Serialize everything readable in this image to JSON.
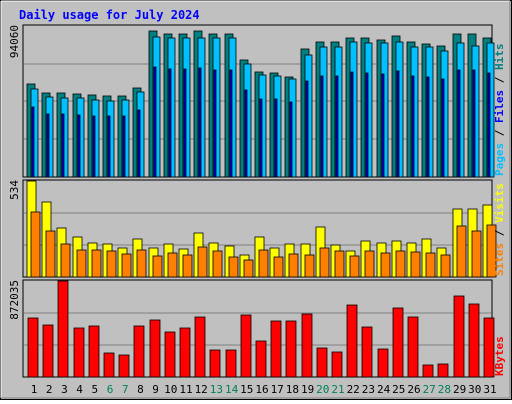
{
  "chart_data": {
    "type": "bar",
    "title": "Daily usage for July 2024",
    "categories": [
      "1",
      "2",
      "3",
      "4",
      "5",
      "6",
      "7",
      "8",
      "9",
      "10",
      "11",
      "12",
      "13",
      "14",
      "15",
      "16",
      "17",
      "18",
      "19",
      "20",
      "21",
      "22",
      "23",
      "24",
      "25",
      "26",
      "27",
      "28",
      "29",
      "30",
      "31"
    ],
    "weekend_days": [
      "6",
      "7",
      "13",
      "14",
      "20",
      "21",
      "27",
      "28"
    ],
    "panels": [
      {
        "name": "top",
        "ymax_label": "94060",
        "ymax": 94060,
        "legend": [
          "Pages",
          "Files",
          "Hits"
        ],
        "legend_colors": [
          "#00c0ff",
          "#0000ff",
          "#008080"
        ],
        "series": [
          {
            "name": "Hits",
            "color": "#008080",
            "values": [
              57950,
              52340,
              52180,
              51480,
              50820,
              50290,
              50600,
              55480,
              91100,
              89300,
              89300,
              90700,
              89100,
              89100,
              72700,
              65100,
              64800,
              62500,
              79900,
              84200,
              84000,
              86800,
              86500,
              85400,
              87800,
              83900,
              82700,
              81600,
              89000,
              89100,
              86600
            ]
          },
          {
            "name": "Files",
            "color": "#0000ff",
            "values": [
              43900,
              39200,
              39200,
              38600,
              38100,
              37700,
              37900,
              41600,
              68300,
              67000,
              67000,
              68000,
              66800,
              66800,
              54500,
              48800,
              48600,
              46900,
              59900,
              63200,
              63000,
              65100,
              64900,
              64000,
              65900,
              62900,
              62000,
              61200,
              66700,
              66800,
              65000
            ]
          },
          {
            "name": "Pages",
            "color": "#00c0ff",
            "values": [
              54700,
              49780,
              49020,
              49020,
              48240,
              47470,
              47890,
              52950,
              87290,
              86550,
              86550,
              86550,
              86550,
              86550,
              70140,
              63680,
              62800,
              60880,
              76280,
              80850,
              80850,
              84380,
              83440,
              83440,
              84380,
              80850,
              80850,
              78460,
              83440,
              81880,
              83440
            ]
          }
        ]
      },
      {
        "name": "middle",
        "ymax_label": "534",
        "ymax": 534,
        "legend": [
          "Sites",
          "Visits"
        ],
        "legend_colors": [
          "#ff8000",
          "#ffff00"
        ],
        "series": [
          {
            "name": "Visits",
            "color": "#ffff00",
            "values": [
              534,
              419,
              270,
              220,
              191,
              184,
              159,
              209,
              162,
              184,
              156,
              242,
              191,
              170,
              123,
              221,
              163,
              184,
              184,
              279,
              177,
              145,
              198,
              191,
              198,
              191,
              212,
              159,
              378,
              377,
              398
            ]
          },
          {
            "name": "Sites",
            "color": "#ff8000",
            "values": [
              363,
              255,
              184,
              152,
              150,
              142,
              128,
              152,
              117,
              132,
              120,
              166,
              142,
              114,
              96,
              150,
              114,
              130,
              120,
              164,
              142,
              117,
              142,
              132,
              142,
              138,
              135,
              120,
              282,
              255,
              287
            ]
          }
        ]
      },
      {
        "name": "bottom",
        "ymax_label": "872035",
        "ymax": 872035,
        "legend": [
          "KBytes"
        ],
        "legend_colors": [
          "#ff0000"
        ],
        "series": [
          {
            "name": "KBytes",
            "color": "#ff0000",
            "values": [
              540000,
              472000,
              872035,
              445000,
              462000,
              217000,
              199000,
              459000,
              514000,
              406000,
              448000,
              549000,
              246000,
              242000,
              559000,
              323000,
              512000,
              511000,
              570000,
              259000,
              223000,
              658000,
              452000,
              250000,
              627000,
              549000,
              112000,
              114000,
              736000,
              667000,
              532000
            ]
          }
        ]
      }
    ]
  }
}
